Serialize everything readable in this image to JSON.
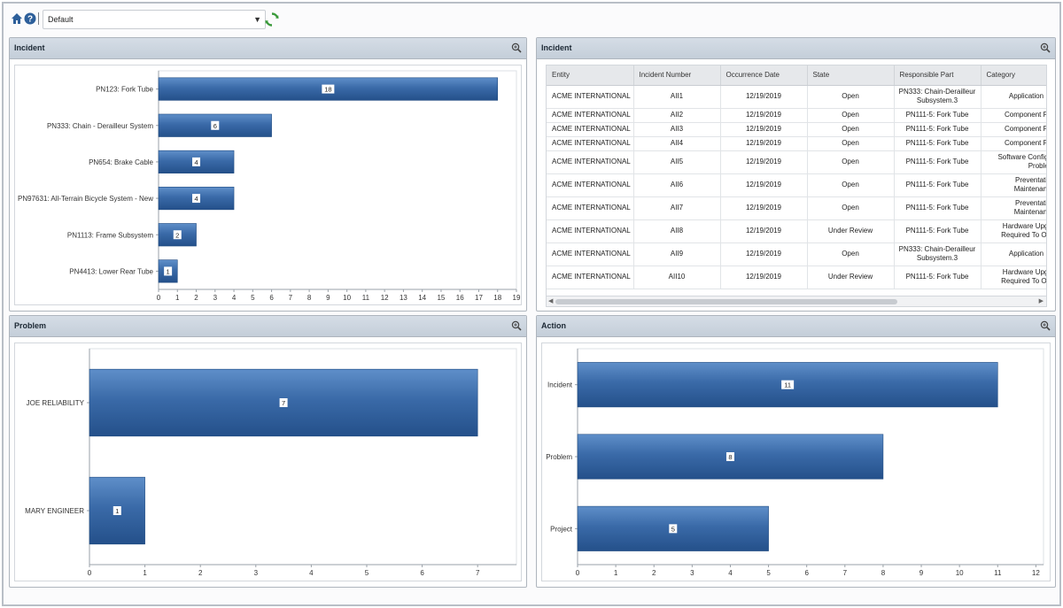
{
  "toolbar": {
    "home_icon": "home-icon",
    "help_icon": "help-icon",
    "dashboard_select": "Default",
    "refresh_icon": "refresh-icon"
  },
  "panels": {
    "incident_chart": {
      "title": "Incident"
    },
    "incident_table": {
      "title": "Incident"
    },
    "problem_chart": {
      "title": "Problem"
    },
    "action_chart": {
      "title": "Action"
    }
  },
  "incident_table": {
    "columns": [
      "Entity",
      "Incident Number",
      "Occurrence Date",
      "State",
      "Responsible Part",
      "Category"
    ],
    "rows": [
      [
        "ACME INTERNATIONAL",
        "AII1",
        "12/19/2019",
        "Open",
        "PN333: Chain-Derailleur|Subsystem.3",
        "Application Iss"
      ],
      [
        "ACME INTERNATIONAL",
        "AII2",
        "12/19/2019",
        "Open",
        "PN111-5: Fork Tube",
        "Component Fail"
      ],
      [
        "ACME INTERNATIONAL",
        "AII3",
        "12/19/2019",
        "Open",
        "PN111-5: Fork Tube",
        "Component Fail"
      ],
      [
        "ACME INTERNATIONAL",
        "AII4",
        "12/19/2019",
        "Open",
        "PN111-5: Fork Tube",
        "Component Fail"
      ],
      [
        "ACME INTERNATIONAL",
        "AII5",
        "12/19/2019",
        "Open",
        "PN111-5: Fork Tube",
        "Software Configur|Problem"
      ],
      [
        "ACME INTERNATIONAL",
        "AII6",
        "12/19/2019",
        "Open",
        "PN111-5: Fork Tube",
        "Preventative|Maintenance"
      ],
      [
        "ACME INTERNATIONAL",
        "AII7",
        "12/19/2019",
        "Open",
        "PN111-5: Fork Tube",
        "Preventative|Maintenance"
      ],
      [
        "ACME INTERNATIONAL",
        "AII8",
        "12/19/2019",
        "Under Review",
        "PN111-5: Fork Tube",
        "Hardware Upgra|Required To Ope"
      ],
      [
        "ACME INTERNATIONAL",
        "AII9",
        "12/19/2019",
        "Open",
        "PN333: Chain-Derailleur|Subsystem.3",
        "Application Iss"
      ],
      [
        "ACME INTERNATIONAL",
        "AII10",
        "12/19/2019",
        "Under Review",
        "PN111-5: Fork Tube",
        "Hardware Upgra|Required To Ope"
      ]
    ]
  },
  "chart_data": [
    {
      "id": "incident",
      "type": "bar",
      "orientation": "horizontal",
      "categories": [
        "PN123: Fork Tube",
        "PN333: Chain - Derailleur System",
        "PN654: Brake Cable",
        "PN97631: All-Terrain Bicycle System - New",
        "PN1113: Frame Subsystem",
        "PN4413: Lower Rear Tube"
      ],
      "values": [
        18,
        6,
        4,
        4,
        2,
        1
      ],
      "xlim": [
        0,
        19
      ],
      "xticks": [
        0,
        1,
        2,
        3,
        4,
        5,
        6,
        7,
        8,
        9,
        10,
        11,
        12,
        13,
        14,
        15,
        16,
        17,
        18,
        19
      ],
      "bar_color": "#3a6aa8",
      "grid": false
    },
    {
      "id": "problem",
      "type": "bar",
      "orientation": "horizontal",
      "categories": [
        "JOE RELIABILITY",
        "MARY ENGINEER"
      ],
      "values": [
        7,
        1
      ],
      "xlim": [
        0,
        7.7
      ],
      "xticks": [
        0,
        1,
        2,
        3,
        4,
        5,
        6,
        7
      ],
      "bar_color": "#3a6aa8",
      "grid": false
    },
    {
      "id": "action",
      "type": "bar",
      "orientation": "horizontal",
      "categories": [
        "Incident",
        "Problem",
        "Project"
      ],
      "values": [
        11,
        8,
        5
      ],
      "xlim": [
        0,
        12.2
      ],
      "xticks": [
        0,
        1,
        2,
        3,
        4,
        5,
        6,
        7,
        8,
        9,
        10,
        11,
        12
      ],
      "bar_color": "#3a6aa8",
      "grid": false
    }
  ]
}
